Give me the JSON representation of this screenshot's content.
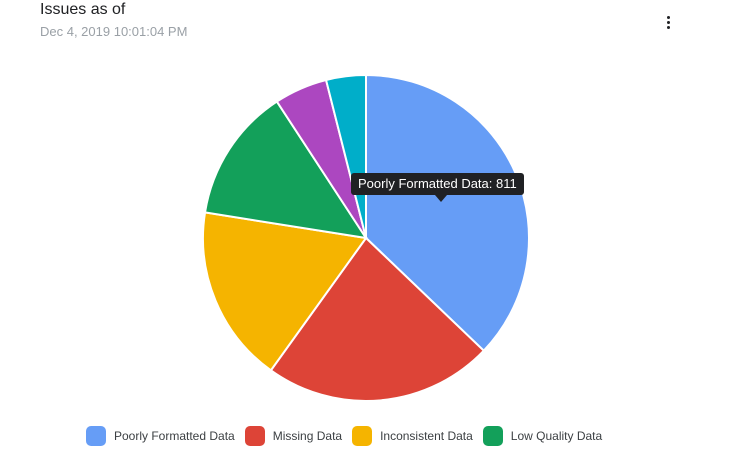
{
  "header": {
    "title": "Issues as of",
    "timestamp": "Dec 4, 2019 10:01:04 PM",
    "menu_icon": "more-vert-icon"
  },
  "tooltip": {
    "text": "Poorly Formatted Data: 811"
  },
  "colors": {
    "poorly_formatted": "#669df6",
    "missing": "#dd4437",
    "inconsistent": "#f5b400",
    "low_quality": "#13a05a",
    "purple": "#ac47c0",
    "teal": "#00aec9"
  },
  "legend": {
    "items": [
      {
        "label": "Poorly Formatted Data",
        "color": "#669df6"
      },
      {
        "label": "Missing Data",
        "color": "#dd4437"
      },
      {
        "label": "Inconsistent Data",
        "color": "#f5b400"
      },
      {
        "label": "Low Quality Data",
        "color": "#13a05a"
      }
    ]
  },
  "chart_data": {
    "type": "pie",
    "title": "Issues as of",
    "subtitle": "Dec 4, 2019 10:01:04 PM",
    "legend_position": "bottom",
    "start_angle_deg": 0,
    "slices": [
      {
        "label": "Poorly Formatted Data",
        "value": 811,
        "color": "#669df6"
      },
      {
        "label": "Missing Data",
        "value": 497,
        "color": "#dd4437"
      },
      {
        "label": "Inconsistent Data",
        "value": 384,
        "color": "#f5b400"
      },
      {
        "label": "Low Quality Data",
        "value": 290,
        "color": "#13a05a"
      },
      {
        "label": "",
        "value": 115,
        "color": "#ac47c0"
      },
      {
        "label": "",
        "value": 86,
        "color": "#00aec9"
      }
    ]
  }
}
